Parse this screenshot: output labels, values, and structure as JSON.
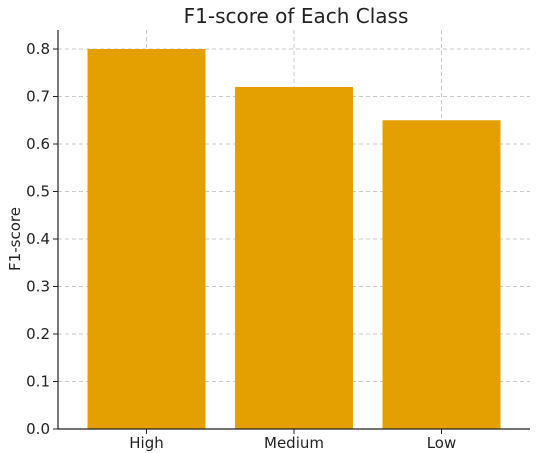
{
  "chart_data": {
    "type": "bar",
    "title": "F1-score of Each Class",
    "xlabel": "",
    "ylabel": "F1-score",
    "categories": [
      "High",
      "Medium",
      "Low"
    ],
    "values": [
      0.8,
      0.72,
      0.65
    ],
    "ylim": [
      0,
      0.84
    ],
    "yticks": [
      0.0,
      0.1,
      0.2,
      0.3,
      0.4,
      0.5,
      0.6,
      0.7,
      0.8
    ],
    "ytick_labels": [
      "0.0",
      "0.1",
      "0.2",
      "0.3",
      "0.4",
      "0.5",
      "0.6",
      "0.7",
      "0.8"
    ],
    "grid": true,
    "bar_color": "#E3A000",
    "grid_color": "#C8C8C8",
    "axis_color": "#222222"
  }
}
